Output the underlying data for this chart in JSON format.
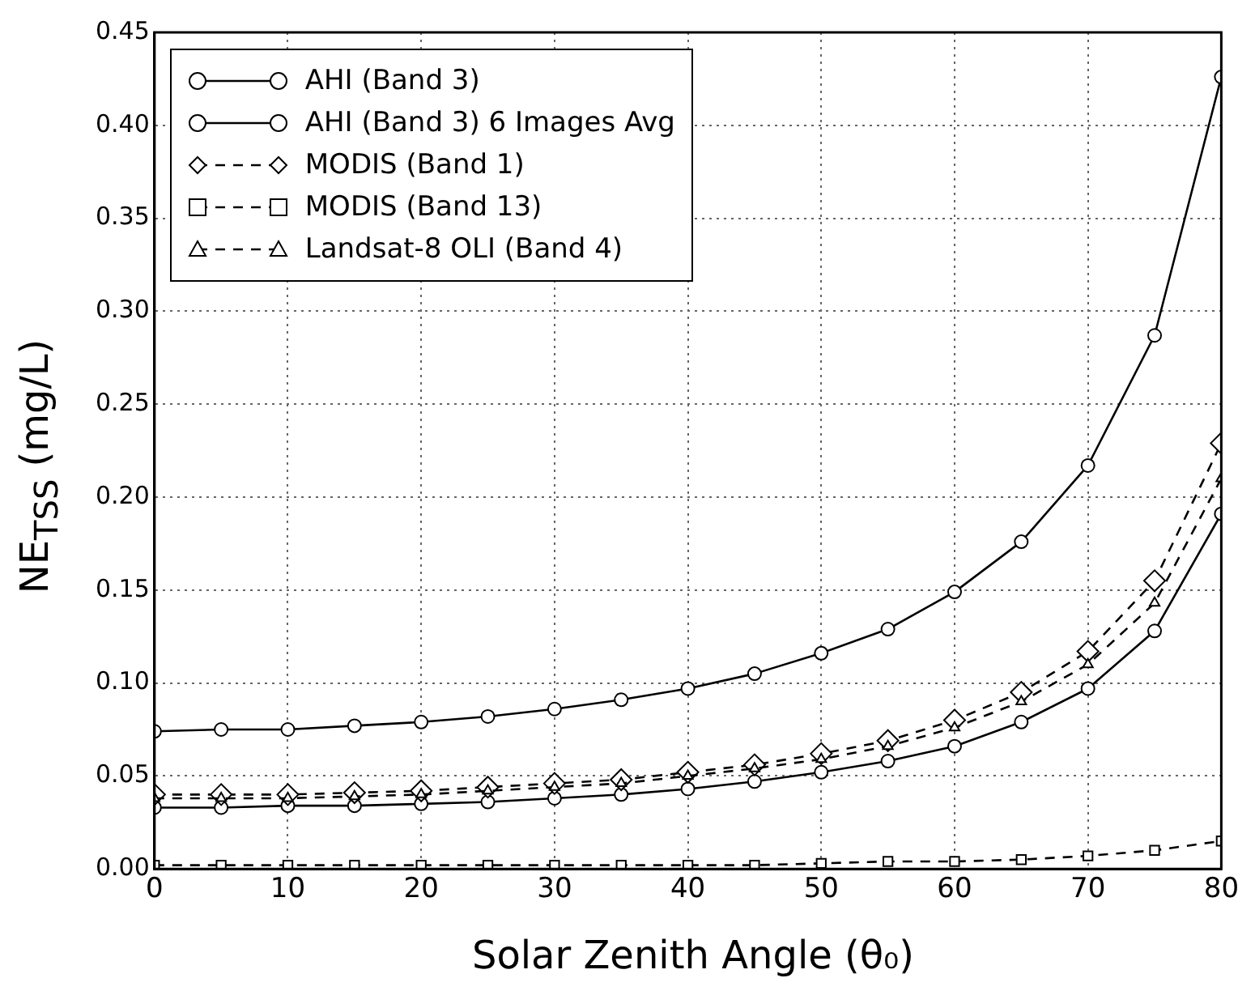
{
  "chart_data": {
    "type": "line",
    "xlabel": "Solar Zenith Angle (θ₀)",
    "ylabel": "NE$_{TSS}$ (mg/L)",
    "x": [
      0,
      5,
      10,
      15,
      20,
      25,
      30,
      35,
      40,
      45,
      50,
      55,
      60,
      65,
      70,
      75,
      80
    ],
    "xlim": [
      0,
      80
    ],
    "xticks": [
      0,
      10,
      20,
      30,
      40,
      50,
      60,
      70,
      80
    ],
    "ylim": [
      0,
      0.45
    ],
    "yticks": [
      {
        "value": 0,
        "label": "0.00"
      },
      0.05,
      {
        "value": 0.1,
        "label": "0.10"
      },
      0.15,
      {
        "value": 0.2,
        "label": "0.20"
      },
      0.25,
      {
        "value": 0.3,
        "label": "0.30"
      },
      0.35,
      {
        "value": 0.4,
        "label": "0.40"
      },
      0.45
    ],
    "grid": true,
    "legend": "top left",
    "series": [
      {
        "name": "AHI (Band 3)",
        "color": "#000000",
        "marker": "circle",
        "line_style": "solid",
        "values": [
          0.074,
          0.075,
          0.075,
          0.077,
          0.079,
          0.082,
          0.086,
          0.091,
          0.097,
          0.105,
          0.116,
          0.129,
          0.149,
          0.176,
          0.217,
          0.287,
          0.426
        ]
      },
      {
        "name": "AHI (Band 3) 6 Images Avg",
        "color": "#000000",
        "marker": "circle",
        "line_style": "solid",
        "values": [
          0.033,
          0.033,
          0.034,
          0.034,
          0.035,
          0.036,
          0.038,
          0.04,
          0.043,
          0.047,
          0.052,
          0.058,
          0.066,
          0.079,
          0.097,
          0.128,
          0.191
        ]
      },
      {
        "name": "MODIS (Band 1)",
        "color": "#000000",
        "marker": "diamond",
        "line_style": "dashed",
        "values": [
          0.04,
          0.04,
          0.04,
          0.041,
          0.042,
          0.044,
          0.046,
          0.048,
          0.052,
          0.056,
          0.062,
          0.069,
          0.08,
          0.095,
          0.117,
          0.155,
          0.229
        ]
      },
      {
        "name": "MODIS (Band 13)",
        "color": "#000000",
        "marker": "square",
        "line_style": "dashed",
        "values": [
          0.002,
          0.002,
          0.002,
          0.002,
          0.002,
          0.002,
          0.002,
          0.002,
          0.002,
          0.002,
          0.003,
          0.004,
          0.004,
          0.005,
          0.007,
          0.01,
          0.015
        ]
      },
      {
        "name": "Landsat-8 OLI (Band 4)",
        "color": "#000000",
        "marker": "triangle",
        "line_style": "dashed",
        "values": [
          0.038,
          0.038,
          0.038,
          0.039,
          0.04,
          0.042,
          0.044,
          0.046,
          0.05,
          0.054,
          0.059,
          0.066,
          0.076,
          0.09,
          0.11,
          0.143,
          0.21
        ]
      }
    ]
  }
}
